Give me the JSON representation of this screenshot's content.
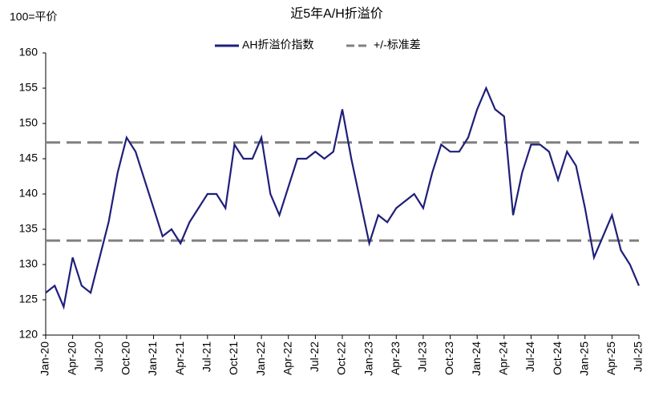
{
  "chart_data": {
    "type": "line",
    "title": "近5年A/H折溢价",
    "y_label": "100=平价",
    "categories": [
      "Jan-20",
      null,
      null,
      "Apr-20",
      null,
      null,
      "Jul-20",
      null,
      null,
      "Oct-20",
      null,
      null,
      "Jan-21",
      null,
      null,
      "Apr-21",
      null,
      null,
      "Jul-21",
      null,
      null,
      "Oct-21",
      null,
      null,
      "Jan-22",
      null,
      null,
      "Apr-22",
      null,
      null,
      "Jul-22",
      null,
      null,
      "Oct-22",
      null,
      null,
      "Jan-23",
      null,
      null,
      "Apr-23",
      null,
      null,
      "Jul-23",
      null,
      null,
      "Oct-23",
      null,
      null,
      "Jan-24",
      null,
      null,
      "Apr-24",
      null,
      null,
      "Jul-24",
      null,
      null,
      "Oct-24",
      null,
      null,
      "Jan-25",
      null,
      null,
      "Apr-25",
      null,
      null,
      "Jul-25"
    ],
    "series": [
      {
        "name": "AH折溢价指数",
        "color": "#1f1f7a",
        "values": [
          126,
          127,
          124,
          131,
          127,
          126,
          131,
          136,
          143,
          148,
          146,
          142,
          138,
          134,
          135,
          133,
          136,
          138,
          140,
          140,
          138,
          147,
          145,
          145,
          148,
          140,
          137,
          141,
          145,
          145,
          146,
          145,
          146,
          152,
          145,
          139,
          133,
          137,
          136,
          138,
          139,
          140,
          138,
          143,
          147,
          146,
          146,
          148,
          152,
          155,
          152,
          151,
          137,
          143,
          147,
          147,
          146,
          142,
          146,
          144,
          138,
          131,
          134,
          137,
          132,
          130,
          127
        ]
      }
    ],
    "bands": {
      "name": "+/-标准差",
      "color": "#808080",
      "values": [
        147.3,
        133.4
      ]
    },
    "ylim": [
      120,
      160
    ],
    "yticks": [
      120,
      125,
      130,
      135,
      140,
      145,
      150,
      155,
      160
    ],
    "legend": "top"
  }
}
